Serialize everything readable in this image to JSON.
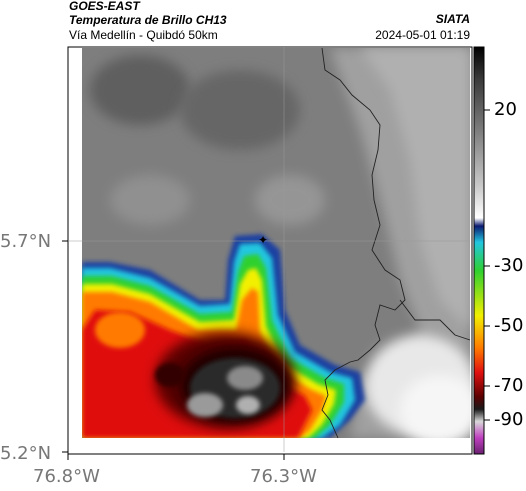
{
  "header": {
    "satellite": "GOES-EAST",
    "product": "Temperatura de Brillo CH13",
    "region": "Vía Medellín - Quibdó 50km",
    "organization": "SIATA",
    "timestamp": "2024-05-01 01:19"
  },
  "axes": {
    "lat_ticks": [
      "5.7°N",
      "5.2°N"
    ],
    "lon_ticks": [
      "76.8°W",
      "76.3°W"
    ]
  },
  "colorbar": {
    "ticks": [
      "20",
      "-30",
      "-50",
      "-70",
      "-90"
    ],
    "colors": {
      "warm_gray": "#8a8a8a",
      "cold_blue": "#1e3fa0",
      "cyan": "#22c6e0",
      "green": "#2fd02f",
      "yellow": "#f2f000",
      "orange": "#ff7a00",
      "red": "#e01010",
      "dark_red": "#5a0000",
      "black": "#101010",
      "magenta": "#c040c0"
    }
  }
}
